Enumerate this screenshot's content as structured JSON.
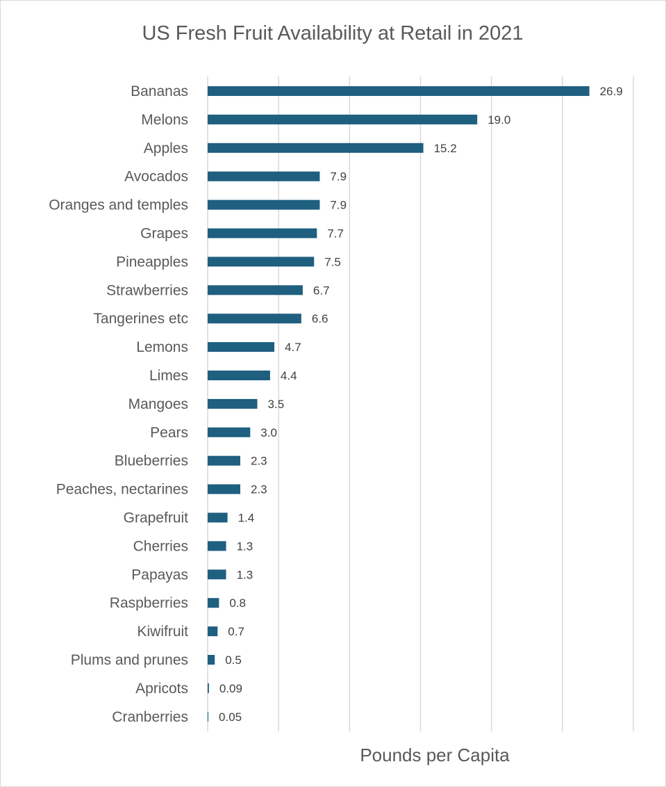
{
  "chart_data": {
    "type": "bar",
    "orientation": "horizontal",
    "title": "US Fresh Fruit Availability at Retail in 2021",
    "xlabel": "Pounds per Capita",
    "ylabel": "",
    "xlim": [
      0,
      30
    ],
    "x_gridlines": [
      0,
      5,
      10,
      15,
      20,
      25,
      30
    ],
    "grid": true,
    "x_tick_labels_shown": false,
    "legend": "none",
    "bar_color": "#1f5f7f",
    "categories": [
      "Bananas",
      "Melons",
      "Apples",
      "Avocados",
      "Oranges and temples",
      "Grapes",
      "Pineapples",
      "Strawberries",
      "Tangerines etc",
      "Lemons",
      "Limes",
      "Mangoes",
      "Pears",
      "Blueberries",
      "Peaches, nectarines",
      "Grapefruit",
      "Cherries",
      "Papayas",
      "Raspberries",
      "Kiwifruit",
      "Plums and prunes",
      "Apricots",
      "Cranberries"
    ],
    "values": [
      26.9,
      19.0,
      15.2,
      7.9,
      7.9,
      7.7,
      7.5,
      6.7,
      6.6,
      4.7,
      4.4,
      3.5,
      3.0,
      2.3,
      2.3,
      1.4,
      1.3,
      1.3,
      0.8,
      0.7,
      0.5,
      0.09,
      0.05
    ],
    "data_labels": [
      "26.9",
      "19.0",
      "15.2",
      "7.9",
      "7.9",
      "7.7",
      "7.5",
      "6.7",
      "6.6",
      "4.7",
      "4.4",
      "3.5",
      "3.0",
      "2.3",
      "2.3",
      "1.4",
      "1.3",
      "1.3",
      "0.8",
      "0.7",
      "0.5",
      "0.09",
      "0.05"
    ]
  }
}
